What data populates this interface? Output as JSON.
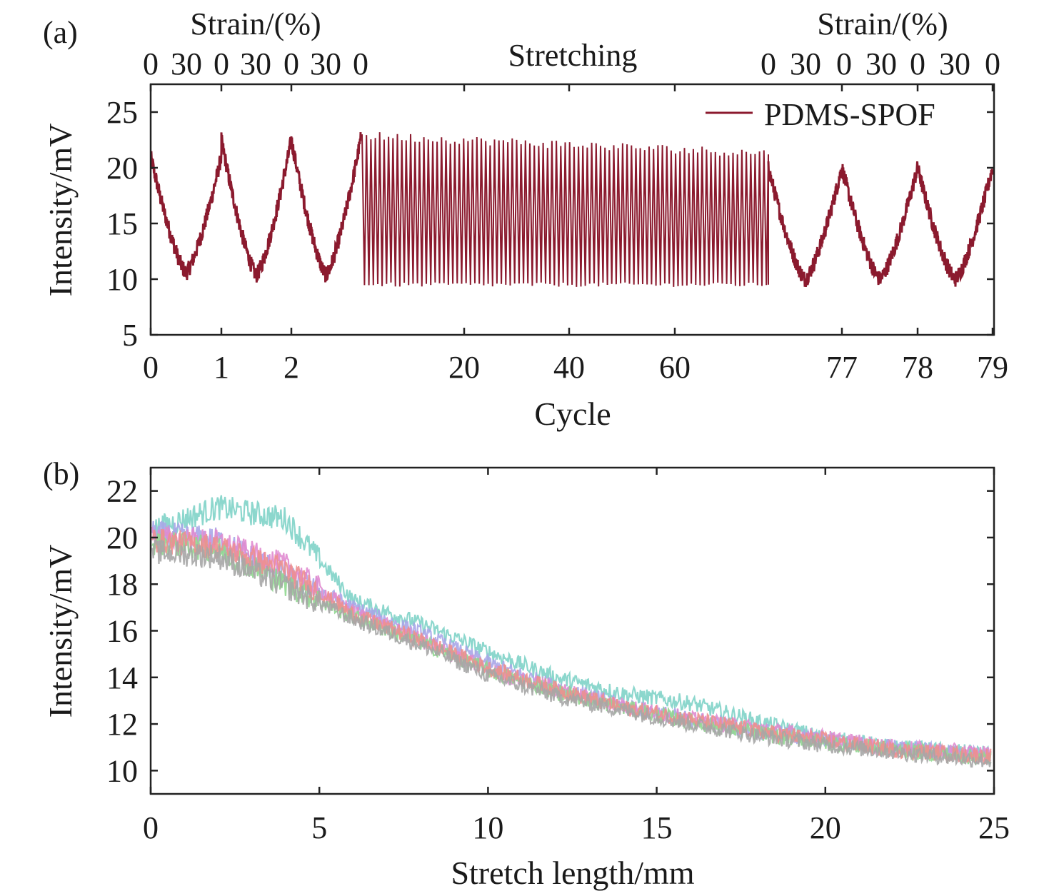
{
  "chart_data": [
    {
      "type": "line",
      "panel_label": "(a)",
      "xlabel": "Cycle",
      "ylabel": "Intensity/mV",
      "ylim": [
        5,
        27.5
      ],
      "yticks": [
        5,
        10,
        15,
        20,
        25
      ],
      "xtick_labels": [
        "0",
        "1",
        "2",
        "20",
        "40",
        "60",
        "77",
        "78",
        "79"
      ],
      "top_axis_left_title": "Strain/(%)",
      "top_axis_right_title": "Strain/(%)",
      "top_axis_center_label": "Stretching",
      "top_ticks_left": [
        "0",
        "30",
        "0",
        "30",
        "0",
        "30",
        "0"
      ],
      "top_ticks_right": [
        "0",
        "30",
        "0",
        "30",
        "0",
        "30",
        "0"
      ],
      "legend": {
        "entries": [
          "PDMS-SPOF"
        ],
        "position": "top-right"
      },
      "series": [
        {
          "name": "PDMS-SPOF",
          "color": "#8b1a2e",
          "segments": [
            {
              "cycles": [
                0,
                3
              ],
              "peak": 22.5,
              "trough": 10.5,
              "shape": "V-shaped cycles"
            },
            {
              "cycles": [
                3,
                76
              ],
              "peak": 21.5,
              "trough": 9.5,
              "shape": "dense oscillation"
            },
            {
              "cycles": [
                76,
                79
              ],
              "peak": 20.0,
              "trough": 10.0,
              "shape": "V-shaped cycles"
            }
          ]
        }
      ]
    },
    {
      "type": "line",
      "panel_label": "(b)",
      "xlabel": "Stretch length/mm",
      "ylabel": "Intensity/mV",
      "xlim": [
        0,
        25
      ],
      "ylim": [
        9,
        23
      ],
      "xticks": [
        0,
        5,
        10,
        15,
        20,
        25
      ],
      "yticks": [
        10,
        12,
        14,
        16,
        18,
        20,
        22
      ],
      "grid": false,
      "series": [
        {
          "color": "#7fd3c8",
          "x": [
            0,
            2,
            4,
            6,
            8,
            10,
            12,
            14,
            16,
            18,
            20,
            22,
            25
          ],
          "y": [
            20.3,
            21.3,
            20.8,
            17.3,
            16.3,
            15.1,
            14.0,
            13.3,
            12.9,
            12.1,
            11.4,
            11.0,
            10.7
          ]
        },
        {
          "color": "#a9a6e8",
          "x": [
            0,
            2,
            4,
            6,
            8,
            10,
            12,
            14,
            16,
            18,
            20,
            22,
            25
          ],
          "y": [
            20.2,
            19.9,
            18.4,
            17.0,
            15.9,
            14.6,
            13.6,
            12.8,
            12.2,
            11.7,
            11.3,
            11.0,
            10.6
          ]
        },
        {
          "color": "#e08bd0",
          "x": [
            0,
            2,
            4,
            6,
            8,
            10,
            12,
            14,
            16,
            18,
            20,
            22,
            25
          ],
          "y": [
            20.0,
            19.8,
            18.8,
            16.8,
            15.6,
            14.3,
            13.5,
            12.8,
            12.2,
            11.8,
            11.4,
            11.0,
            10.7
          ]
        },
        {
          "color": "#90d890",
          "x": [
            0,
            2,
            4,
            6,
            8,
            10,
            12,
            14,
            16,
            18,
            20,
            22,
            25
          ],
          "y": [
            19.8,
            19.5,
            18.0,
            16.6,
            15.5,
            14.3,
            13.4,
            12.7,
            12.1,
            11.6,
            11.2,
            10.9,
            10.5
          ]
        },
        {
          "color": "#ed8f8f",
          "x": [
            0,
            2,
            4,
            6,
            8,
            10,
            12,
            14,
            16,
            18,
            20,
            22,
            25
          ],
          "y": [
            19.9,
            19.6,
            18.6,
            16.7,
            15.6,
            14.4,
            13.5,
            12.7,
            12.2,
            11.7,
            11.3,
            10.9,
            10.6
          ]
        },
        {
          "color": "#a6a6a6",
          "x": [
            0,
            2,
            4,
            6,
            8,
            10,
            12,
            14,
            16,
            18,
            20,
            22,
            25
          ],
          "y": [
            19.4,
            19.2,
            17.9,
            16.5,
            15.4,
            14.1,
            13.2,
            12.6,
            12.0,
            11.5,
            11.1,
            10.8,
            10.4
          ]
        }
      ]
    }
  ]
}
